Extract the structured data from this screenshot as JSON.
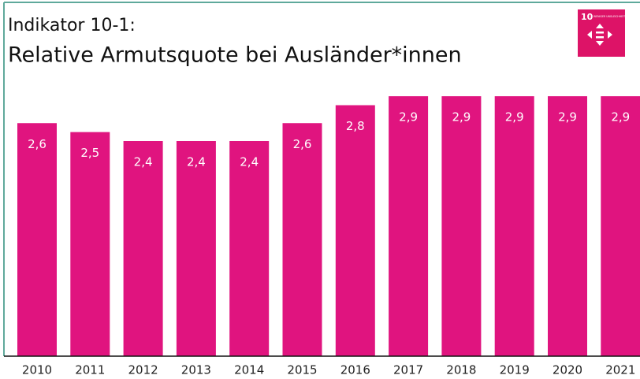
{
  "chart_data": {
    "type": "bar",
    "title": "Indikator 10-1:",
    "subtitle": "Relative Armutsquote bei Ausländer*innen",
    "icon_number": "10",
    "icon_text": "WENIGER UNGLEICHHEITEN",
    "categories": [
      "2010",
      "2011",
      "2012",
      "2013",
      "2014",
      "2015",
      "2016",
      "2017",
      "2018",
      "2019",
      "2020",
      "2021"
    ],
    "values": [
      2.6,
      2.5,
      2.4,
      2.4,
      2.4,
      2.6,
      2.8,
      2.9,
      2.9,
      2.9,
      2.9,
      2.9
    ],
    "value_labels": [
      "2,6",
      "2,5",
      "2,4",
      "2,4",
      "2,4",
      "2,6",
      "2,8",
      "2,9",
      "2,9",
      "2,9",
      "2,9",
      "2,9"
    ],
    "color": "#e0147f",
    "ylim": [
      0,
      3.2
    ]
  }
}
